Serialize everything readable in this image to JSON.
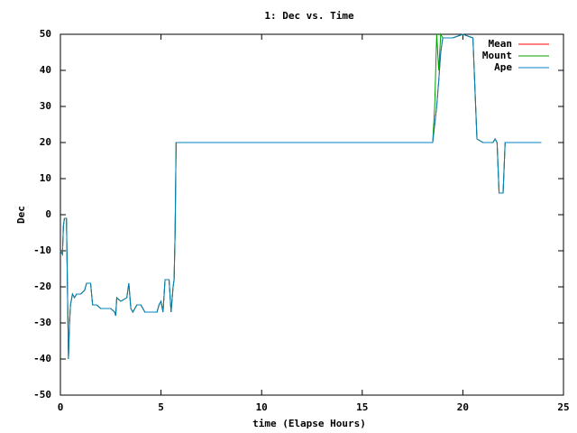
{
  "chart_data": {
    "type": "line",
    "title": "1: Dec vs. Time",
    "x_label": "time (Elapse Hours)",
    "y_label": "Dec",
    "x": [
      0,
      0.1,
      0.15,
      0.2,
      0.3,
      0.35,
      0.4,
      0.45,
      0.5,
      0.6,
      0.7,
      0.8,
      1.0,
      1.2,
      1.3,
      1.5,
      1.6,
      1.8,
      2.0,
      2.5,
      2.7,
      2.75,
      2.8,
      3.0,
      3.3,
      3.4,
      3.5,
      3.6,
      3.8,
      4.0,
      4.2,
      4.5,
      4.8,
      4.9,
      5.0,
      5.1,
      5.2,
      5.4,
      5.5,
      5.6,
      5.65,
      5.7,
      5.75,
      10,
      15,
      18.5,
      18.6,
      18.7,
      18.8,
      18.9,
      19.0,
      19.5,
      20.0,
      20.5,
      20.6,
      20.7,
      21.0,
      21.5,
      21.6,
      21.7,
      21.8,
      22.0,
      22.1,
      23.0,
      23.9
    ],
    "series": [
      {
        "name": "Mean",
        "color": "#ff0000",
        "values": [
          -10,
          -11,
          -3,
          -1,
          -1,
          -20,
          -40,
          -30,
          -25,
          -22,
          -23,
          -22,
          -22,
          -21,
          -19,
          -19,
          -25,
          -25,
          -26,
          -26,
          -27,
          -28,
          -23,
          -24,
          -23,
          -19,
          -26,
          -27,
          -25,
          -25,
          -27,
          -27,
          -27,
          -25,
          -24,
          -27,
          -18,
          -18,
          -27,
          -20,
          -18,
          -5,
          20,
          20,
          20,
          20,
          25,
          30,
          37,
          45,
          49,
          49,
          50,
          49,
          35,
          21,
          20,
          20,
          21,
          20,
          6,
          6,
          20,
          20,
          20
        ]
      },
      {
        "name": "Mount",
        "color": "#00a000",
        "values": [
          -10,
          -11,
          -3,
          -1,
          -1,
          -20,
          -40,
          -31,
          -25,
          -22,
          -23,
          -22,
          -22,
          -21,
          -19,
          -19,
          -25,
          -25,
          -26,
          -26,
          -27,
          -28,
          -23,
          -24,
          -23,
          -19,
          -26,
          -27,
          -25,
          -25,
          -27,
          -27,
          -27,
          -25,
          -24,
          -27,
          -18,
          -18,
          -27,
          -20,
          -18,
          -5,
          20,
          20,
          20,
          20,
          30,
          50,
          40,
          50,
          49,
          49,
          50,
          49,
          35,
          21,
          20,
          20,
          21,
          20,
          6,
          6,
          20,
          20,
          20
        ]
      },
      {
        "name": "Ape",
        "color": "#0080c0",
        "values": [
          -10,
          -11,
          -3,
          -1,
          -1,
          -20,
          -40,
          -30,
          -25,
          -22,
          -23,
          -22,
          -22,
          -21,
          -19,
          -19,
          -25,
          -25,
          -26,
          -26,
          -27,
          -28,
          -23,
          -24,
          -23,
          -19,
          -26,
          -27,
          -25,
          -25,
          -27,
          -27,
          -27,
          -25,
          -24,
          -27,
          -18,
          -18,
          -27,
          -20,
          -18,
          -5,
          20,
          20,
          20,
          20,
          25,
          30,
          37,
          45,
          49,
          49,
          50,
          49,
          35,
          21,
          20,
          20,
          21,
          20,
          6,
          6,
          20,
          20,
          20
        ]
      }
    ],
    "xlim": [
      0,
      25
    ],
    "xticks": [
      0,
      5,
      10,
      15,
      20,
      25
    ],
    "ylim": [
      -50,
      50
    ],
    "yticks": [
      -50,
      -40,
      -30,
      -20,
      -10,
      0,
      10,
      20,
      30,
      40,
      50
    ],
    "legend": "top-right"
  }
}
